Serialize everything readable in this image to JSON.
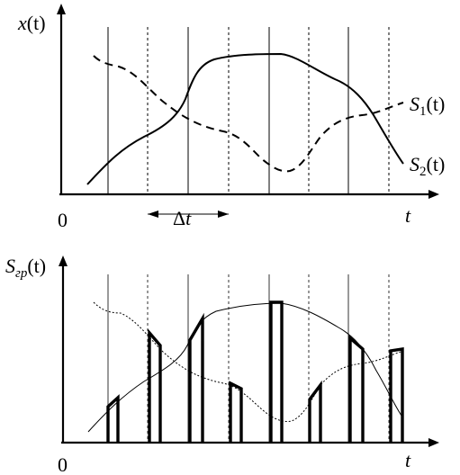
{
  "top": {
    "y_label": {
      "base": "x",
      "arg": "(t)"
    },
    "origin": "0",
    "x_label": "t",
    "delta": {
      "symbol": "Δ",
      "var": "t"
    },
    "s1": {
      "base": "S",
      "sub": "1",
      "arg": "(t)"
    },
    "s2": {
      "base": "S",
      "sub": "2",
      "arg": "(t)"
    }
  },
  "bottom": {
    "y_label": {
      "base": "S",
      "sub": "гр",
      "arg": "(t)"
    },
    "origin": "0",
    "x_label": "t"
  },
  "colors": {
    "ink": "#000000",
    "background": "#ffffff"
  }
}
